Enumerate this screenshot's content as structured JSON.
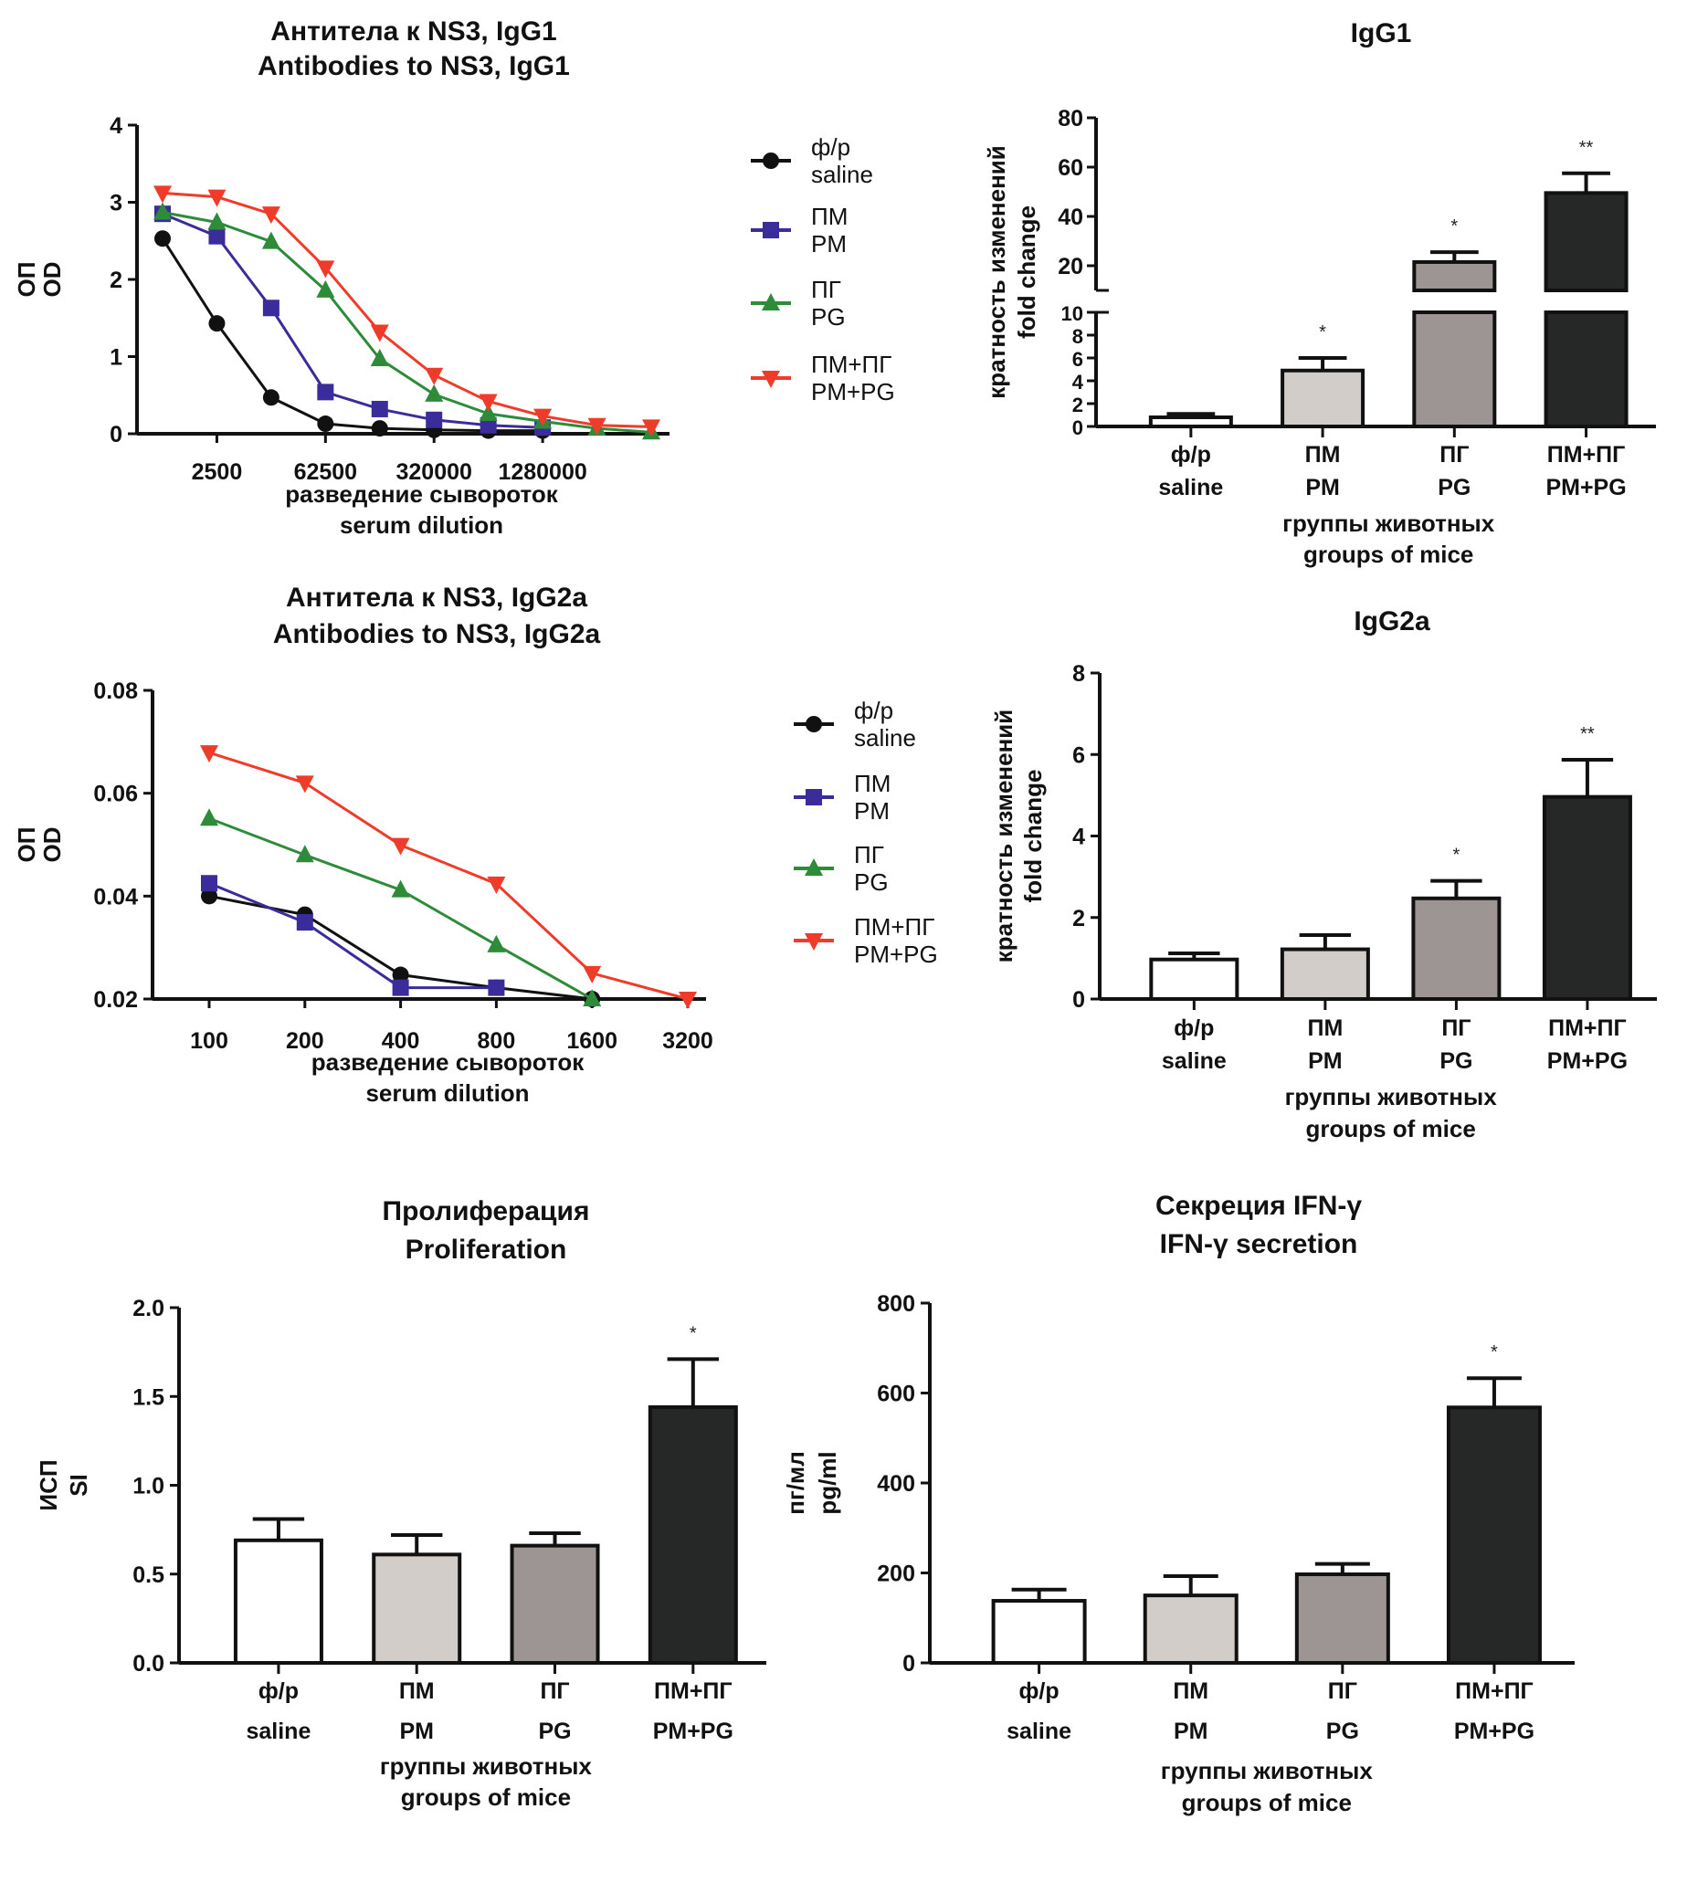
{
  "groups": {
    "labels_ru": [
      "ф/р",
      "ПМ",
      "ПГ",
      "ПМ+ПГ"
    ],
    "labels_en": [
      "saline",
      "PM",
      "PG",
      "PM+PG"
    ],
    "line_colors": [
      "#111111",
      "#3a2c9a",
      "#2e8b3a",
      "#ee3b2a"
    ],
    "line_markers": [
      "circle",
      "square",
      "triangle-up",
      "triangle-down"
    ],
    "bar_fills": [
      "#ffffff",
      "#d3cdc9",
      "#9c9594",
      "#262828"
    ]
  },
  "chart_data": [
    {
      "id": "igg1-titration",
      "type": "line",
      "title": [
        "Антитела к NS3, IgG1",
        "Antibodies to NS3, IgG1"
      ],
      "xlabel": [
        "разведение сывороток",
        "serum dilution"
      ],
      "ylabel": [
        "ОП",
        "OD"
      ],
      "x_positions": [
        1,
        2,
        3,
        4,
        5,
        6,
        7,
        8,
        9,
        10
      ],
      "x_ticks": [
        2,
        4,
        6,
        8
      ],
      "x_tick_labels": [
        "2500",
        "62500",
        "320000",
        "1280000"
      ],
      "ylim": [
        0,
        4
      ],
      "y_ticks": [
        0,
        1,
        2,
        3,
        4
      ],
      "y_tick_labels": [
        "0",
        "1",
        "2",
        "3",
        "4"
      ],
      "legend": "right",
      "series": [
        {
          "name": "ф/р saline",
          "values": [
            2.53,
            1.43,
            0.47,
            0.13,
            0.07,
            0.05,
            0.04,
            0.04
          ]
        },
        {
          "name": "ПМ PM",
          "values": [
            2.85,
            2.56,
            1.63,
            0.54,
            0.32,
            0.18,
            0.11,
            0.08
          ]
        },
        {
          "name": "ПГ PG",
          "values": [
            2.87,
            2.74,
            2.49,
            1.86,
            0.97,
            0.51,
            0.26,
            0.16,
            0.07,
            0.02
          ]
        },
        {
          "name": "ПМ+ПГ PM+PG",
          "values": [
            3.12,
            3.07,
            2.85,
            2.15,
            1.32,
            0.76,
            0.42,
            0.23,
            0.11,
            0.09
          ]
        }
      ]
    },
    {
      "id": "igg1-fold",
      "type": "bar",
      "title": [
        "IgG1"
      ],
      "xlabel": [
        "группы животных",
        "groups of mice"
      ],
      "ylabel": [
        "кратность изменений",
        "fold change"
      ],
      "categories": [
        "ф/р saline",
        "ПМ PM",
        "ПГ PG",
        "ПМ+ПГ PM+PG"
      ],
      "values": [
        0.8,
        4.9,
        21.5,
        49.5
      ],
      "error_upper": [
        1.1,
        6.0,
        25.5,
        57.5
      ],
      "significance": [
        "",
        "*",
        "*",
        "**"
      ],
      "axis_break": [
        10,
        10
      ],
      "ylim_lower": [
        0,
        10
      ],
      "y_ticks_lower": [
        0,
        2,
        4,
        6,
        8,
        10
      ],
      "ylim_upper": [
        10,
        80
      ],
      "y_ticks_upper": [
        20,
        40,
        60,
        80
      ]
    },
    {
      "id": "igg2a-titration",
      "type": "line",
      "title": [
        "Антитела к NS3, IgG2a",
        "Antibodies to NS3, IgG2a"
      ],
      "xlabel": [
        "разведение сывороток",
        "serum dilution"
      ],
      "ylabel": [
        "ОП",
        "OD"
      ],
      "x_positions": [
        1,
        2,
        3,
        4,
        5,
        6
      ],
      "x_ticks": [
        1,
        2,
        3,
        4,
        5,
        6
      ],
      "x_tick_labels": [
        "100",
        "200",
        "400",
        "800",
        "1600",
        "3200"
      ],
      "ylim": [
        0.02,
        0.08
      ],
      "y_ticks": [
        0.02,
        0.04,
        0.06,
        0.08
      ],
      "y_tick_labels": [
        "0.02",
        "0.04",
        "0.06",
        "0.08"
      ],
      "legend": "right",
      "series": [
        {
          "name": "ф/р saline",
          "values": [
            0.04,
            0.0364,
            0.0247,
            0.0222,
            0.02
          ]
        },
        {
          "name": "ПМ PM",
          "values": [
            0.0425,
            0.0349,
            0.0222,
            0.0222
          ]
        },
        {
          "name": "ПГ PG",
          "values": [
            0.0551,
            0.048,
            0.0412,
            0.0305,
            0.02
          ]
        },
        {
          "name": "ПМ+ПГ PM+PG",
          "values": [
            0.0679,
            0.062,
            0.0499,
            0.0424,
            0.025,
            0.02
          ]
        }
      ]
    },
    {
      "id": "igg2a-fold",
      "type": "bar",
      "title": [
        "IgG2a"
      ],
      "xlabel": [
        "группы животных",
        "groups of mice"
      ],
      "ylabel": [
        "кратность изменений",
        "fold change"
      ],
      "categories": [
        "ф/р saline",
        "ПМ PM",
        "ПГ PG",
        "ПМ+ПГ PM+PG"
      ],
      "values": [
        0.97,
        1.22,
        2.47,
        4.96
      ],
      "error_upper": [
        1.12,
        1.57,
        2.9,
        5.87
      ],
      "significance": [
        "",
        "",
        "*",
        "**"
      ],
      "ylim": [
        0,
        8
      ],
      "y_ticks": [
        0,
        2,
        4,
        6,
        8
      ]
    },
    {
      "id": "proliferation",
      "type": "bar",
      "title": [
        "Пролиферация",
        "Proliferation"
      ],
      "xlabel": [
        "группы животных",
        "groups of mice"
      ],
      "ylabel": [
        "ИСП",
        "SI"
      ],
      "categories": [
        "ф/р saline",
        "ПМ PM",
        "ПГ PG",
        "ПМ+ПГ PM+PG"
      ],
      "values": [
        0.69,
        0.61,
        0.66,
        1.44
      ],
      "error_upper": [
        0.81,
        0.72,
        0.73,
        1.71
      ],
      "significance": [
        "",
        "",
        "",
        "*"
      ],
      "ylim": [
        0,
        2.0
      ],
      "y_ticks": [
        0,
        0.5,
        1.0,
        1.5,
        2.0
      ],
      "y_tick_labels": [
        "0.0",
        "0.5",
        "1.0",
        "1.5",
        "2.0"
      ]
    },
    {
      "id": "ifn-gamma",
      "type": "bar",
      "title": [
        "Секреция IFN-γ",
        "IFN-γ secretion"
      ],
      "xlabel": [
        "группы животных",
        "groups of mice"
      ],
      "ylabel": [
        "пг/мл",
        "pg/ml"
      ],
      "categories": [
        "ф/р saline",
        "ПМ PM",
        "ПГ PG",
        "ПМ+ПГ PM+PG"
      ],
      "values": [
        138,
        150,
        197,
        568
      ],
      "error_upper": [
        163,
        193,
        220,
        633
      ],
      "significance": [
        "",
        "",
        "",
        "*"
      ],
      "ylim": [
        0,
        800
      ],
      "y_ticks": [
        0,
        200,
        400,
        600,
        800
      ]
    }
  ]
}
